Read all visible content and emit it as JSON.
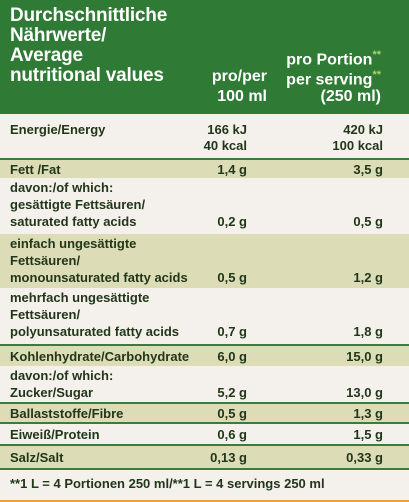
{
  "header": {
    "title_lines": [
      "Durchschnittliche",
      "Nährwerte/",
      "Average",
      "nutritional values"
    ],
    "col1_lines": [
      "pro/per",
      "100 ml"
    ],
    "col2_line1": "pro Portion",
    "col2_line2": "per serving",
    "col2_line3": "(250 ml)",
    "star_marker": "**"
  },
  "rows": {
    "energy": {
      "label": "Energie/Energy",
      "v1a": "166 kJ",
      "v1b": "40 kcal",
      "v2a": "420 kJ",
      "v2b": "100 kcal"
    },
    "fat": {
      "label": "Fett /Fat",
      "v1": "1,4 g",
      "v2": "3,5 g"
    },
    "saturated": {
      "lines": [
        "davon:/of which:",
        "gesättigte Fettsäuren/",
        "saturated fatty acids"
      ],
      "v1": "0,2 g",
      "v2": "0,5 g"
    },
    "mono": {
      "lines": [
        "einfach ungesättigte",
        "Fettsäuren/",
        "monounsaturated fatty acids"
      ],
      "v1": "0,5 g",
      "v2": "1,2 g"
    },
    "poly": {
      "lines": [
        "mehrfach ungesättigte",
        "Fettsäuren/",
        "polyunsaturated fatty acids"
      ],
      "v1": "0,7 g",
      "v2": "1,8 g"
    },
    "carbs": {
      "label": "Kohlenhydrate/Carbohydrate",
      "v1": "6,0 g",
      "v2": "15,0 g"
    },
    "sugar": {
      "lines": [
        "davon:/of which:",
        "Zucker/Sugar"
      ],
      "v1": "5,2 g",
      "v2": "13,0 g"
    },
    "fibre": {
      "label": "Ballaststoffe/Fibre",
      "v1": "0,5 g",
      "v2": "1,3 g"
    },
    "protein": {
      "label": "Eiweiß/Protein",
      "v1": "0,6 g",
      "v2": "1,5 g"
    },
    "salt": {
      "label": "Salz/Salt",
      "v1": "0,13 g",
      "v2": "0,33 g"
    }
  },
  "footer": {
    "note": "**1 L = 4 Portionen 250 ml/**1 L = 4 servings 250 ml"
  },
  "colors": {
    "header_green": "#2f7a34",
    "row_tint": "#dcddb6",
    "text_dark": "#22361a",
    "background": "#f4f1ec"
  }
}
